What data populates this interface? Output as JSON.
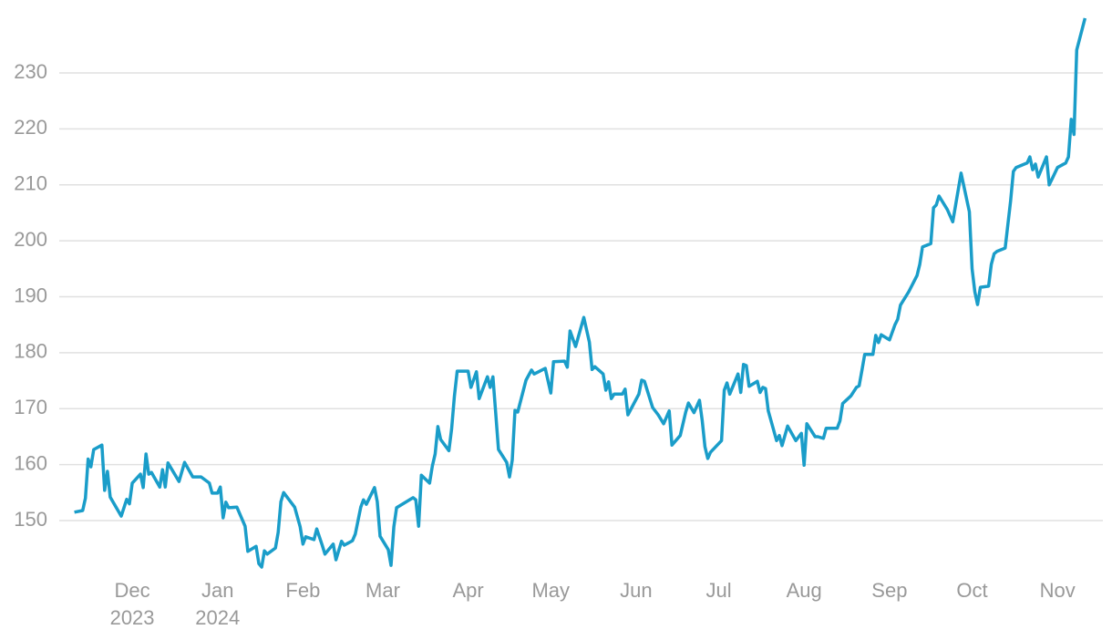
{
  "chart_data": {
    "type": "line",
    "x": [
      0,
      3,
      4,
      5,
      6,
      7,
      10,
      11,
      12,
      13,
      17,
      19,
      20,
      21,
      24,
      25,
      26,
      27,
      28,
      31,
      32,
      33,
      34,
      38,
      40,
      43,
      46,
      49,
      50,
      52,
      53,
      54,
      55,
      56,
      59,
      62,
      63,
      66,
      67,
      68,
      69,
      70,
      73,
      74,
      75,
      76,
      80,
      82,
      83,
      84,
      87,
      88,
      90,
      91,
      94,
      95,
      97,
      98,
      101,
      102,
      104,
      105,
      106,
      109,
      110,
      111,
      114,
      115,
      116,
      117,
      123,
      124,
      125,
      126,
      129,
      130,
      131,
      132,
      133,
      136,
      137,
      138,
      139,
      143,
      144,
      146,
      147,
      150,
      151,
      152,
      154,
      157,
      158,
      159,
      160,
      161,
      164,
      166,
      167,
      171,
      173,
      174,
      178,
      179,
      180,
      182,
      185,
      187,
      188,
      189,
      192,
      193,
      194,
      195,
      196,
      199,
      200,
      201,
      205,
      206,
      207,
      210,
      212,
      214,
      216,
      217,
      220,
      222,
      223,
      225,
      227,
      228,
      229,
      230,
      231,
      235,
      236,
      237,
      238,
      241,
      242,
      243,
      244,
      245,
      248,
      249,
      250,
      251,
      252,
      255,
      256,
      257,
      259,
      262,
      264,
      265,
      266,
      269,
      270,
      272,
      273,
      277,
      278,
      279,
      282,
      284,
      285,
      286,
      287,
      290,
      291,
      292,
      293,
      296,
      298,
      299,
      300,
      303,
      306,
      307,
      308,
      311,
      312,
      313,
      314,
      317,
      319,
      322,
      325,
      326,
      327,
      328,
      329,
      332,
      333,
      334,
      335,
      338,
      340,
      341,
      342,
      346,
      347,
      348,
      349,
      350,
      353,
      354,
      355,
      357,
      360,
      361,
      362,
      363,
      364,
      367
    ],
    "series": [
      {
        "color": "#1a9dc9",
        "values": [
          151.5,
          151.8,
          154,
          161,
          159.6,
          162.7,
          163.5,
          155.4,
          158.8,
          154.2,
          150.8,
          153.8,
          153,
          156.7,
          158.3,
          155.9,
          161.9,
          158.3,
          158.6,
          156,
          159.1,
          156,
          160.3,
          157,
          160.4,
          157.8,
          157.8,
          156.7,
          154.9,
          154.9,
          156,
          150.5,
          153.3,
          152.3,
          152.4,
          149,
          144.5,
          145.4,
          142.3,
          141.7,
          144.6,
          144,
          145.1,
          147.9,
          153.4,
          155,
          152.4,
          148.9,
          145.8,
          147.1,
          146.6,
          148.5,
          145.6,
          144,
          145.8,
          143,
          146.3,
          145.6,
          146.4,
          147.6,
          152.4,
          153.7,
          152.9,
          155.9,
          153.4,
          147.2,
          144.8,
          142,
          148.9,
          152.3,
          154.1,
          153.7,
          149,
          158.1,
          156.7,
          159.8,
          161.9,
          166.8,
          164.5,
          162.5,
          166.4,
          172.2,
          176.7,
          176.7,
          173.8,
          176.6,
          171.8,
          175.7,
          173.8,
          175.7,
          162.7,
          160.4,
          157.8,
          160.8,
          169.7,
          169.4,
          175.1,
          176.9,
          176.2,
          177.2,
          172.8,
          178.4,
          178.5,
          177.4,
          183.9,
          181.1,
          186.3,
          181.9,
          177,
          177.5,
          176.2,
          173.3,
          174.8,
          171.8,
          172.6,
          172.6,
          173.5,
          168.9,
          172.6,
          175.1,
          174.9,
          170.2,
          168.9,
          167.3,
          169.6,
          163.5,
          165.2,
          169.4,
          171,
          169.3,
          171.5,
          167.9,
          163.2,
          161.1,
          162.2,
          164.3,
          173.3,
          174.6,
          172.6,
          176.2,
          172.9,
          177.9,
          177.7,
          174,
          174.9,
          172.9,
          173.8,
          173.6,
          169.6,
          164.3,
          165.2,
          163.4,
          166.9,
          164.3,
          165.6,
          159.9,
          167.3,
          165,
          165,
          164.7,
          166.5,
          166.5,
          167.8,
          170.9,
          172.3,
          173.8,
          174.1,
          176.9,
          179.7,
          179.7,
          183.1,
          181.8,
          183.2,
          182.3,
          185,
          186,
          188.5,
          190.9,
          193.8,
          195.8,
          198.9,
          199.5,
          205.9,
          206.4,
          208,
          205.6,
          203.4,
          212.1,
          205.2,
          195,
          190.9,
          188.6,
          191.7,
          191.9,
          195.8,
          197.7,
          198.1,
          198.7,
          207.2,
          212.4,
          213.1,
          213.9,
          215,
          212.7,
          213.7,
          211.4,
          215,
          210,
          211,
          213.1,
          213.9,
          215,
          221.7,
          219,
          234.1,
          239.8
        ]
      }
    ],
    "xlim": [
      -5.5,
      373.5
    ],
    "xticks": [
      {
        "value": 21,
        "label": "Dec"
      },
      {
        "value": 52,
        "label": "Jan"
      },
      {
        "value": 83,
        "label": "Feb"
      },
      {
        "value": 112,
        "label": "Mar"
      },
      {
        "value": 143,
        "label": "Apr"
      },
      {
        "value": 173,
        "label": "May"
      },
      {
        "value": 204,
        "label": "Jun"
      },
      {
        "value": 234,
        "label": "Jul"
      },
      {
        "value": 265,
        "label": "Aug"
      },
      {
        "value": 296,
        "label": "Sep"
      },
      {
        "value": 326,
        "label": "Oct"
      },
      {
        "value": 357,
        "label": "Nov"
      }
    ],
    "x_year_labels": [
      {
        "value": 21,
        "label": "2023"
      },
      {
        "value": 52,
        "label": "2024"
      }
    ],
    "ylim": [
      140,
      242
    ],
    "yticks": [
      150,
      160,
      170,
      180,
      190,
      200,
      210,
      220,
      230
    ],
    "grid": true
  }
}
